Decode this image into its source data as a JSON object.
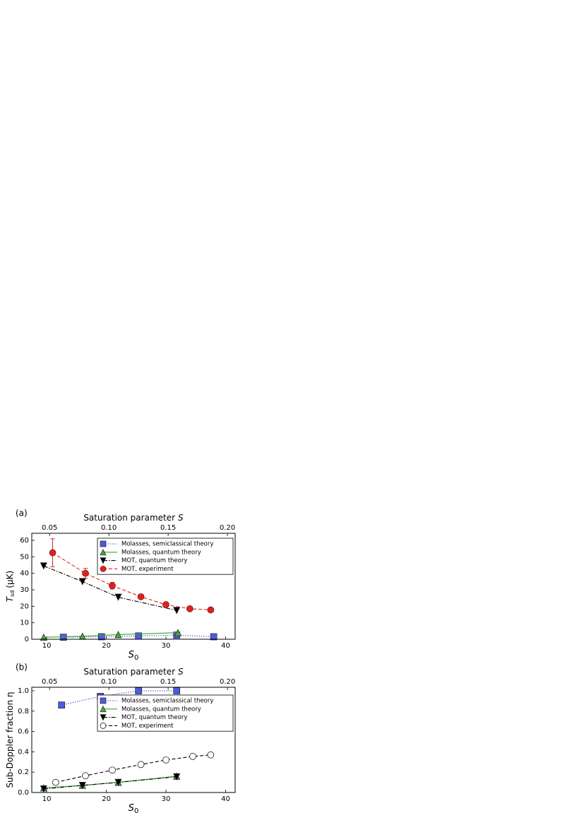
{
  "chart_data": [
    {
      "type": "line",
      "panel_label": "(a)",
      "x2label": {
        "text": "Saturation parameter",
        "var": "S"
      },
      "xlabel": {
        "var": "S",
        "sub": "0"
      },
      "ylabel": {
        "var": "T",
        "sub": "sd",
        "unit": "(μK)"
      },
      "xlim": [
        7.5,
        41.6
      ],
      "xticks": [
        10,
        20,
        30,
        40
      ],
      "x2lim": [
        0.035,
        0.2065
      ],
      "x2ticks": [
        0.05,
        {
          "value": 0.1,
          "label": "0.10"
        },
        0.15,
        {
          "value": 0.2,
          "label": "0.20"
        }
      ],
      "ylim": [
        0,
        64.3
      ],
      "yticks": [
        0,
        10,
        20,
        30,
        40,
        50,
        60
      ],
      "legend": "upper right",
      "series": [
        {
          "name": "Molasses, semiclassical theory",
          "color": "#3333cc",
          "marker_fill": "#4d5ae6",
          "marker": "square",
          "line": "dotted",
          "x": [
            12.8,
            19.2,
            25.4,
            31.8,
            38
          ],
          "values": [
            1.2,
            1.5,
            2,
            2.5,
            1.5
          ]
        },
        {
          "name": "Molasses, quantum theory",
          "color": "#33aa22",
          "marker_fill": "#44aa44",
          "marker": "triangle",
          "line": "solid",
          "x": [
            9.5,
            16,
            22,
            32
          ],
          "values": [
            1.2,
            1.8,
            2.8,
            4
          ]
        },
        {
          "name": "MOT, quantum theory",
          "color": "#000000",
          "marker_fill": "#000000",
          "marker": "triangle-down",
          "line": "dashdot",
          "x": [
            9.5,
            16,
            22,
            31.8
          ],
          "values": [
            44.5,
            35,
            25.5,
            17.5
          ]
        },
        {
          "name": "MOT, experiment",
          "color": "#dd2222",
          "marker_fill": "#dd2222",
          "marker": "circle",
          "line": "dashed",
          "x": [
            11,
            16.5,
            21,
            25.8,
            30,
            34,
            37.5
          ],
          "values": [
            52.5,
            40,
            32.5,
            25.8,
            21,
            18.5,
            17.8
          ],
          "errors": [
            8.5,
            3,
            2,
            1,
            0.8,
            0.5,
            0.5
          ]
        }
      ]
    },
    {
      "type": "line",
      "panel_label": "(b)",
      "x2label": {
        "text": "Saturation parameter",
        "var": "S"
      },
      "xlabel": {
        "var": "S",
        "sub": "0"
      },
      "ylabel": {
        "text": "Sub-Doppler fraction η"
      },
      "xlim": [
        7.5,
        41.6
      ],
      "xticks": [
        10,
        20,
        30,
        40
      ],
      "x2lim": [
        0.035,
        0.2065
      ],
      "x2ticks": [
        0.05,
        {
          "value": 0.1,
          "label": "0.10"
        },
        0.15,
        {
          "value": 0.2,
          "label": "0.20"
        }
      ],
      "ylim": [
        0,
        1.035
      ],
      "yticks": [
        {
          "value": 0,
          "label": "0.0"
        },
        0.2,
        0.4,
        0.6,
        0.8,
        {
          "value": 1,
          "label": "1.0"
        }
      ],
      "legend": "upper right",
      "series": [
        {
          "name": "Molasses, semiclassical theory",
          "color": "#3333cc",
          "marker_fill": "#4d5ae6",
          "marker": "square",
          "line": "dotted",
          "x": [
            12.5,
            19,
            25.4,
            31.8
          ],
          "values": [
            0.86,
            0.945,
            1.0,
            1.0
          ]
        },
        {
          "name": "Molasses, quantum theory",
          "color": "#33aa22",
          "marker_fill": "#44aa44",
          "marker": "triangle",
          "line": "solid",
          "x": [
            9.5,
            16,
            22,
            31.8
          ],
          "values": [
            0.045,
            0.07,
            0.1,
            0.16
          ]
        },
        {
          "name": "MOT, quantum theory",
          "color": "#000000",
          "marker_fill": "#000000",
          "marker": "triangle-down",
          "line": "dashdot",
          "x": [
            9.5,
            16,
            22,
            31.8
          ],
          "values": [
            0.035,
            0.07,
            0.1,
            0.155
          ]
        },
        {
          "name": "MOT, experiment",
          "color": "#000000",
          "marker_fill": "#ffffff",
          "marker": "circle",
          "line": "dashed",
          "x": [
            11.5,
            16.5,
            21,
            25.8,
            30,
            34.5,
            37.5
          ],
          "values": [
            0.1,
            0.165,
            0.22,
            0.275,
            0.32,
            0.355,
            0.37
          ]
        }
      ]
    }
  ]
}
